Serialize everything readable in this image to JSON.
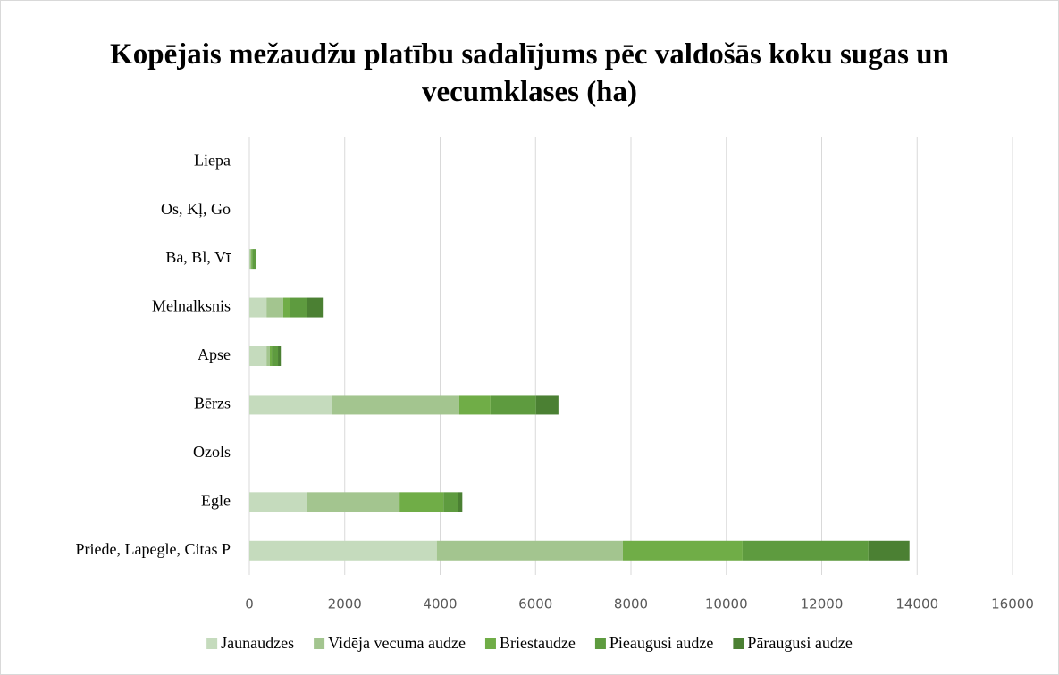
{
  "chart_data": {
    "type": "stacked_barh",
    "title": "Kopējais mežaudžu platību sadalījums pēc valdošās koku sugas un vecumklases (ha)",
    "categories": [
      "Priede, Lapegle, Citas P",
      "Egle",
      "Ozols",
      "Bērzs",
      "Apse",
      "Melnalksnis",
      "Ba, Bl, Vī",
      "Os, Kļ, Go",
      "Liepa"
    ],
    "series": [
      {
        "name": "Jaunaudzes",
        "color": "#c5dbbd",
        "values": [
          3930,
          1200,
          0,
          1740,
          360,
          360,
          10,
          0,
          0
        ]
      },
      {
        "name": "Vidēja vecuma audze",
        "color": "#a3c58f",
        "values": [
          3900,
          1950,
          0,
          2660,
          70,
          350,
          30,
          0,
          0
        ]
      },
      {
        "name": "Briestaudze",
        "color": "#70ad47",
        "values": [
          2510,
          920,
          0,
          655,
          40,
          150,
          20,
          0,
          0
        ]
      },
      {
        "name": "Pieaugusi audze",
        "color": "#5e9b3f",
        "values": [
          2640,
          300,
          0,
          955,
          130,
          340,
          80,
          0,
          0
        ]
      },
      {
        "name": "Pāraugusi audze",
        "color": "#4b8033",
        "values": [
          860,
          95,
          0,
          470,
          60,
          340,
          10,
          0,
          0
        ]
      }
    ],
    "xlim": [
      0,
      16000
    ],
    "xticks": [
      0,
      2000,
      4000,
      6000,
      8000,
      10000,
      12000,
      14000,
      16000
    ],
    "grid": true,
    "legend": "bottom"
  }
}
